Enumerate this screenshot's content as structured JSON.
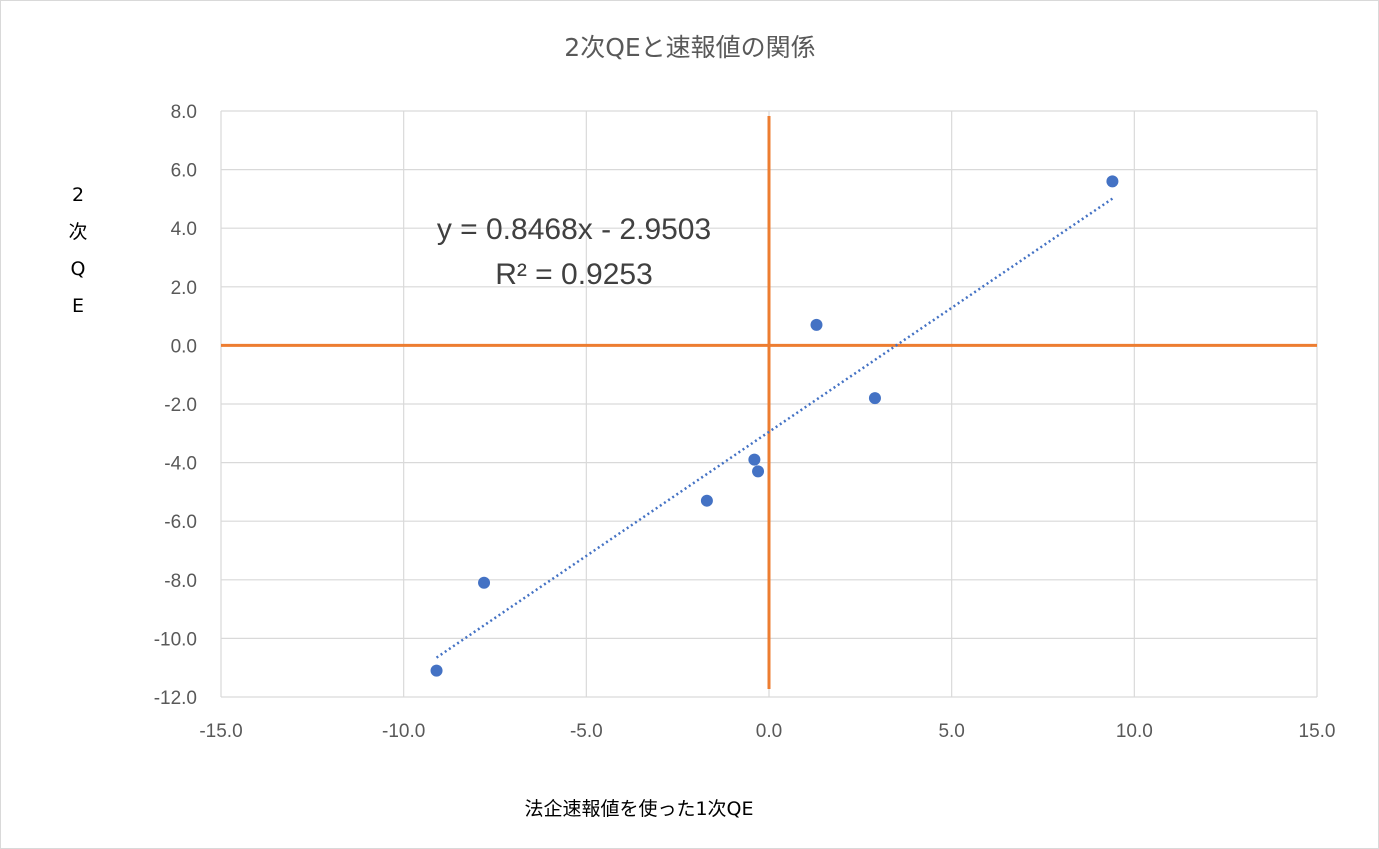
{
  "chart_data": {
    "type": "scatter",
    "title": "2次QEと速報値の関係",
    "xlabel": "法企速報値を使った1次QE",
    "ylabel": "2次QE",
    "xlim": [
      -15,
      15
    ],
    "ylim": [
      -12,
      8
    ],
    "x_ticks": [
      "-15.0",
      "-10.0",
      "-5.0",
      "0.0",
      "5.0",
      "10.0",
      "15.0"
    ],
    "y_ticks": [
      "8.0",
      "6.0",
      "4.0",
      "2.0",
      "0.0",
      "-2.0",
      "-4.0",
      "-6.0",
      "-8.0",
      "-10.0",
      "-12.0"
    ],
    "grid": true,
    "legend": "none",
    "series": [
      {
        "points": [
          {
            "x": 9.4,
            "y": 5.6
          },
          {
            "x": 1.3,
            "y": 0.7
          },
          {
            "x": 2.9,
            "y": -1.8
          },
          {
            "x": -0.4,
            "y": -3.9
          },
          {
            "x": -0.3,
            "y": -4.3
          },
          {
            "x": -1.7,
            "y": -5.3
          },
          {
            "x": -7.8,
            "y": -8.1
          },
          {
            "x": -9.1,
            "y": -11.1
          }
        ]
      }
    ],
    "trendline": {
      "type": "linear",
      "slope": 0.8468,
      "intercept": -2.9503,
      "x_range": [
        -9.1,
        9.4
      ],
      "equation": "y = 0.8468x - 2.9503",
      "r_squared": "R² = 0.9253"
    },
    "reference_lines": {
      "x": 0,
      "y": 0
    },
    "colors": {
      "marker": "#4472c4",
      "trendline": "#4472c4",
      "reference": "#ed7d31",
      "grid": "#d9d9d9",
      "text": "#595959"
    }
  }
}
